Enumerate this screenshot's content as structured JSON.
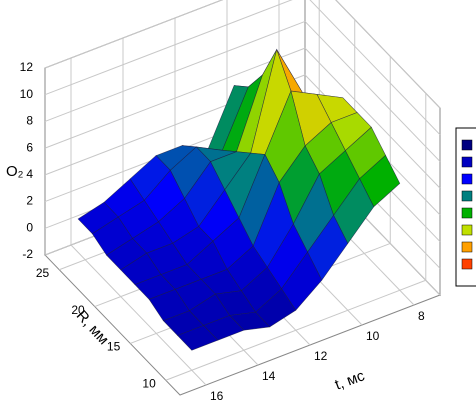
{
  "chart_data": {
    "type": "surface",
    "z_label": "O₂",
    "y_label": "R, мм",
    "x_label": "t, мс",
    "x": [
      8,
      9,
      10,
      11,
      12,
      13,
      14,
      15,
      16
    ],
    "y": [
      10,
      12,
      14,
      16,
      18,
      20,
      22,
      24,
      26
    ],
    "z": [
      [
        6,
        5,
        3,
        1,
        -0.5,
        -1,
        -0.5,
        -0.5,
        -0.5
      ],
      [
        7,
        6,
        4,
        2,
        0,
        -1,
        -0.5,
        -0.5,
        -0.5
      ],
      [
        8,
        7,
        6,
        3,
        0.5,
        -0.5,
        0,
        -0.5,
        -0.5
      ],
      [
        8,
        8,
        7,
        5,
        1,
        0,
        0,
        0,
        0
      ],
      [
        8,
        9,
        10,
        6,
        2,
        1,
        0,
        0,
        0
      ],
      [
        7,
        8,
        12,
        5,
        3,
        1,
        0.5,
        0.5,
        0
      ],
      [
        6,
        7,
        9,
        4,
        4,
        2,
        1,
        0.5,
        0
      ],
      [
        5,
        6,
        7,
        3,
        4,
        3,
        1.5,
        1,
        0.5
      ],
      [
        4,
        5,
        6,
        2,
        3,
        3,
        2,
        1,
        0.5
      ]
    ],
    "xlim": [
      7,
      17
    ],
    "ylim": [
      8,
      27
    ],
    "zlim": [
      -2,
      12
    ],
    "xticks": [
      8,
      10,
      12,
      14,
      16
    ],
    "yticks": [
      10,
      15,
      20,
      25
    ],
    "zticks": [
      -2,
      0,
      2,
      4,
      6,
      8,
      10,
      12
    ],
    "grid": true,
    "colorscale": [
      "#000080",
      "#0000c0",
      "#0000ff",
      "#008080",
      "#00b000",
      "#c0e000",
      "#ffa000",
      "#ff4000"
    ]
  }
}
